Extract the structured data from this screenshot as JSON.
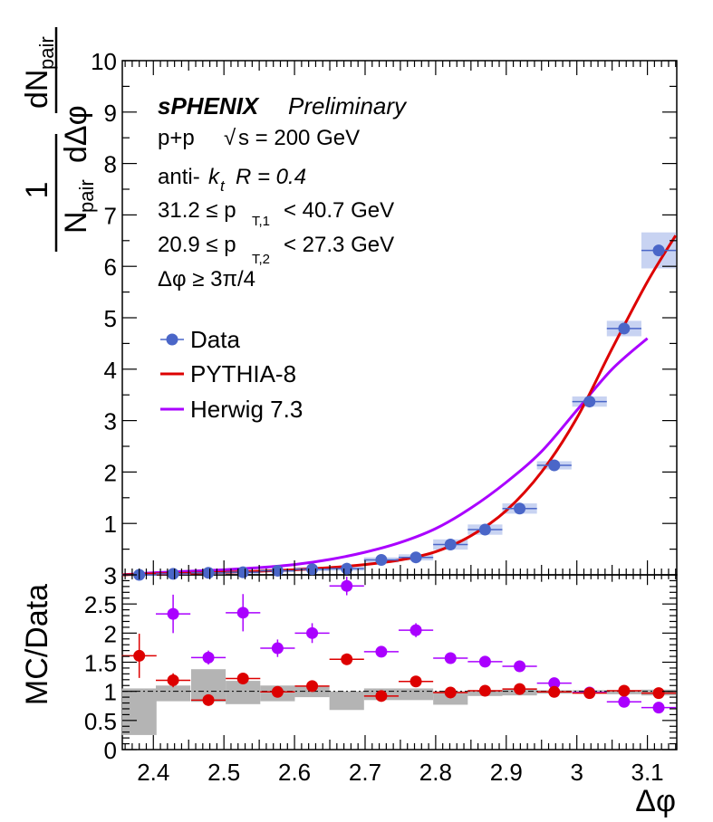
{
  "chart_data": [
    {
      "panel": "main",
      "type": "scatter",
      "xlabel": "Δφ",
      "ylabel": "1 / N_pair dN_pair / dΔφ",
      "ylabel_parts": {
        "one": "1",
        "npair": "N",
        "npair_sub": "pair",
        "dn": "dN",
        "dn_sub": "pair",
        "dphi": "dΔφ"
      },
      "xlim": [
        2.356,
        3.1416
      ],
      "ylim": [
        0,
        10
      ],
      "x_ticks": [
        2.4,
        2.5,
        2.6,
        2.7,
        2.8,
        2.9,
        3.0,
        3.1
      ],
      "x_tick_labels": [
        "2.4",
        "2.5",
        "2.6",
        "2.7",
        "2.8",
        "2.9",
        "3",
        "3.1"
      ],
      "y_ticks": [
        0,
        1,
        2,
        3,
        4,
        5,
        6,
        7,
        8,
        9,
        10
      ],
      "y_tick_labels": [
        "",
        "1",
        "2",
        "3",
        "4",
        "5",
        "6",
        "7",
        "8",
        "9",
        "10"
      ],
      "annotations": {
        "experiment": "sPHENIX",
        "status": "Preliminary",
        "system": "p+p",
        "energy": "√s = 200 GeV",
        "energy_root": "√",
        "energy_rest": "s = 200 GeV",
        "jet_algo_pre": "anti-",
        "jet_algo_k": "k",
        "jet_algo_sub": "t",
        "jet_radius": "R = 0.4",
        "pt1_low": "31.2 ≤ p",
        "pt1_sub": "T,1",
        "pt1_high": "< 40.7 GeV",
        "pt2_low": "20.9 ≤ p",
        "pt2_sub": "T,2",
        "pt2_high": "< 27.3 GeV",
        "dphi_cut": "Δφ  ≥ 3π/4"
      },
      "legend": {
        "placement": "left-middle",
        "entries": [
          "Data",
          "PYTHIA-8",
          "Herwig 7.3"
        ]
      },
      "colors": {
        "data": "#4a66c8",
        "data_band": "#c8d3f2",
        "pythia": "#dd0000",
        "herwig": "#aa00ff"
      },
      "series": [
        {
          "name": "Data",
          "x": [
            2.38,
            2.428,
            2.478,
            2.527,
            2.576,
            2.625,
            2.674,
            2.723,
            2.772,
            2.821,
            2.87,
            2.919,
            2.968,
            3.018,
            3.067,
            3.116
          ],
          "y": [
            0.0,
            0.02,
            0.04,
            0.05,
            0.08,
            0.11,
            0.12,
            0.29,
            0.34,
            0.59,
            0.88,
            1.29,
            2.13,
            3.37,
            4.79,
            6.31
          ],
          "xerr": [
            0.0245,
            0.0245,
            0.0245,
            0.0245,
            0.0245,
            0.0245,
            0.0245,
            0.0245,
            0.0245,
            0.0245,
            0.0245,
            0.0245,
            0.0245,
            0.0245,
            0.0245,
            0.0245
          ],
          "syst": [
            0.02,
            0.02,
            0.03,
            0.03,
            0.03,
            0.04,
            0.04,
            0.05,
            0.06,
            0.1,
            0.1,
            0.1,
            0.08,
            0.1,
            0.15,
            0.35
          ]
        },
        {
          "name": "PYTHIA-8",
          "x": [
            2.356,
            2.4,
            2.45,
            2.5,
            2.55,
            2.6,
            2.65,
            2.7,
            2.75,
            2.8,
            2.85,
            2.9,
            2.95,
            3.0,
            3.05,
            3.1,
            3.14
          ],
          "y": [
            0.0,
            0.02,
            0.03,
            0.05,
            0.07,
            0.1,
            0.14,
            0.2,
            0.29,
            0.45,
            0.76,
            1.25,
            2.0,
            3.05,
            4.4,
            5.7,
            6.6
          ]
        },
        {
          "name": "Herwig 7.3",
          "x": [
            2.356,
            2.4,
            2.45,
            2.5,
            2.55,
            2.6,
            2.65,
            2.7,
            2.75,
            2.8,
            2.85,
            2.9,
            2.95,
            3.0,
            3.05,
            3.1
          ],
          "y": [
            0.0,
            0.04,
            0.07,
            0.1,
            0.14,
            0.2,
            0.3,
            0.44,
            0.63,
            0.9,
            1.3,
            1.8,
            2.4,
            3.2,
            4.0,
            4.6
          ]
        }
      ]
    },
    {
      "panel": "ratio",
      "type": "scatter",
      "xlabel": "Δφ",
      "ylabel": "MC/Data",
      "xlim": [
        2.356,
        3.1416
      ],
      "ylim": [
        0,
        3
      ],
      "y_ticks": [
        0,
        0.5,
        1,
        1.5,
        2,
        2.5,
        3
      ],
      "y_tick_labels": [
        "0",
        "0.5",
        "1",
        "1.5",
        "2",
        "2.5",
        "3"
      ],
      "reference_line": 1,
      "colors": {
        "band": "#b4b4b4",
        "pythia": "#dd0000",
        "herwig": "#aa00ff"
      },
      "uncertainty_band": {
        "x": [
          2.38,
          2.428,
          2.478,
          2.527,
          2.576,
          2.625,
          2.674,
          2.723,
          2.772,
          2.821,
          2.87,
          2.919,
          2.968,
          3.018,
          3.067,
          3.116
        ],
        "low": [
          0.25,
          0.83,
          0.82,
          0.78,
          0.83,
          0.9,
          0.68,
          0.85,
          0.85,
          0.77,
          0.92,
          0.93,
          0.96,
          0.97,
          0.95,
          0.93
        ],
        "high": [
          1.05,
          1.1,
          1.38,
          1.18,
          1.1,
          1.08,
          1.0,
          1.05,
          1.05,
          1.0,
          1.02,
          1.05,
          1.02,
          1.02,
          1.02,
          1.03
        ]
      },
      "series": [
        {
          "name": "PYTHIA-8",
          "x": [
            2.38,
            2.428,
            2.478,
            2.527,
            2.576,
            2.625,
            2.674,
            2.723,
            2.772,
            2.821,
            2.87,
            2.919,
            2.968,
            3.018,
            3.067,
            3.116
          ],
          "y": [
            1.61,
            1.19,
            0.85,
            1.22,
            0.99,
            1.09,
            1.55,
            0.92,
            1.17,
            0.98,
            1.01,
            1.04,
            0.99,
            0.97,
            1.01,
            0.97
          ],
          "yerr": [
            0.38,
            0.12,
            0.08,
            0.08,
            0.05,
            0.05,
            0.08,
            0.04,
            0.04,
            0.03,
            0.02,
            0.02,
            0.02,
            0.02,
            0.02,
            0.02
          ]
        },
        {
          "name": "Herwig 7.3",
          "x": [
            2.38,
            2.428,
            2.478,
            2.527,
            2.576,
            2.625,
            2.674,
            2.723,
            2.772,
            2.821,
            2.87,
            2.919,
            2.968,
            3.018,
            3.067,
            3.116
          ],
          "y": [
            null,
            2.33,
            1.58,
            2.35,
            1.74,
            2.0,
            2.81,
            1.68,
            2.05,
            1.57,
            1.51,
            1.43,
            1.14,
            0.98,
            0.82,
            0.72
          ],
          "yerr": [
            null,
            0.33,
            0.12,
            0.32,
            0.15,
            0.17,
            0.16,
            0.05,
            0.12,
            0.05,
            0.04,
            0.03,
            0.03,
            0.02,
            0.02,
            0.02
          ]
        }
      ]
    }
  ]
}
